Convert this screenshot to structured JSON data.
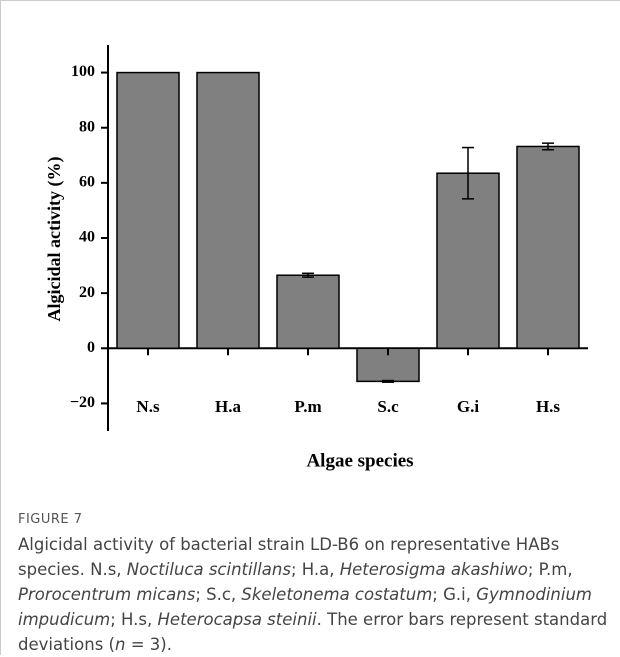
{
  "chart_data": {
    "type": "bar",
    "categories": [
      "N.s",
      "H.a",
      "P.m",
      "S.c",
      "G.i",
      "H.s"
    ],
    "values": [
      100,
      100,
      26.5,
      -12,
      63.5,
      73.2
    ],
    "errors": [
      0,
      0,
      0.7,
      0.3,
      9.3,
      1.2
    ],
    "color": "#808080",
    "xlabel": "Algae species",
    "ylabel": "Algicidal activity (%)",
    "ylim": [
      -30,
      110
    ],
    "yticks": [
      {
        "value": -20,
        "label": "−20"
      },
      0,
      20,
      40,
      60,
      80,
      100
    ]
  },
  "figure_label": "FIGURE 7",
  "caption": [
    {
      "text": "Algicidal activity of bacterial strain LD-B6 on representative HABs species. N.s, ",
      "italic": false
    },
    {
      "text": "Noctiluca scintillans",
      "italic": true
    },
    {
      "text": "; H.a, ",
      "italic": false
    },
    {
      "text": "Heterosigma akashiwo",
      "italic": true
    },
    {
      "text": "; P.m, ",
      "italic": false
    },
    {
      "text": "Prorocentrum micans",
      "italic": true
    },
    {
      "text": "; S.c, ",
      "italic": false
    },
    {
      "text": "Skeletonema costatum",
      "italic": true
    },
    {
      "text": "; G.i, ",
      "italic": false
    },
    {
      "text": "Gymnodinium impudicum",
      "italic": true
    },
    {
      "text": "; H.s, ",
      "italic": false
    },
    {
      "text": "Heterocapsa steinii",
      "italic": true
    },
    {
      "text": ". The error bars represent standard deviations (",
      "italic": false
    },
    {
      "text": "n",
      "italic": true
    },
    {
      "text": " = 3).",
      "italic": false
    }
  ]
}
